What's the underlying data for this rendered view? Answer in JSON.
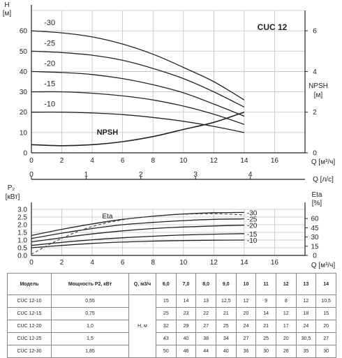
{
  "chart_data": [
    {
      "type": "line",
      "title": "CUC 12",
      "ylabel_left": "H\n[м]",
      "ylabel_right": "NPSH\n[м]",
      "xlabel": "Q [м³/ч]",
      "xlabel_secondary": "Q [л/с]",
      "xlim": [
        0,
        18
      ],
      "ylim": [
        0,
        70
      ],
      "ylim_right": [
        0,
        7
      ],
      "xticks": [
        0,
        2,
        4,
        6,
        8,
        10,
        12,
        14,
        16
      ],
      "xticks_secondary": [
        0,
        1,
        2,
        3,
        4
      ],
      "yticks": [
        0,
        10,
        20,
        30,
        40,
        50,
        60
      ],
      "yticks_right": [
        0,
        2,
        4,
        6
      ],
      "grid": true,
      "series": [
        {
          "name": "-30",
          "x": [
            0,
            2,
            4,
            6,
            8,
            10,
            12,
            14
          ],
          "y": [
            60,
            59,
            57,
            53.5,
            48.5,
            42,
            35,
            26
          ]
        },
        {
          "name": "-25",
          "x": [
            0,
            2,
            4,
            6,
            8,
            10,
            12,
            14
          ],
          "y": [
            50,
            49.3,
            48,
            45.5,
            41.5,
            36.5,
            30,
            22.5
          ]
        },
        {
          "name": "-20",
          "x": [
            0,
            2,
            4,
            6,
            8,
            10,
            12,
            14
          ],
          "y": [
            40,
            39.5,
            38.5,
            36.5,
            33.5,
            29.5,
            24,
            18
          ]
        },
        {
          "name": "-15",
          "x": [
            0,
            2,
            4,
            6,
            8,
            10,
            12,
            14
          ],
          "y": [
            30,
            30,
            29.3,
            28,
            26,
            23,
            19,
            14
          ]
        },
        {
          "name": "-10",
          "x": [
            0,
            2,
            4,
            6,
            8,
            10,
            12,
            14
          ],
          "y": [
            20,
            20,
            19.6,
            18.8,
            17.4,
            15.5,
            13,
            10
          ]
        },
        {
          "name": "NPSH",
          "axis": "right",
          "x": [
            0,
            2,
            4,
            6,
            8,
            10,
            12,
            14
          ],
          "y": [
            0.4,
            0.35,
            0.4,
            0.55,
            0.8,
            1.15,
            1.5,
            2.0
          ]
        }
      ]
    },
    {
      "type": "line",
      "ylabel_left": "P₂\n[кВт]",
      "ylabel_right": "Eta\n[%]",
      "xlabel": "Q [м³/ч]",
      "xlim": [
        0,
        18
      ],
      "ylim": [
        0,
        3.0
      ],
      "ylim_right": [
        0,
        75
      ],
      "xticks": [
        0,
        2,
        4,
        6,
        8,
        10,
        12,
        14,
        16
      ],
      "yticks": [
        0.0,
        0.5,
        1.0,
        1.5,
        2.0,
        2.5,
        3.0
      ],
      "yticks_right": [
        0,
        15,
        30,
        45,
        60
      ],
      "grid": true,
      "series": [
        {
          "name": "-30",
          "x": [
            0,
            2,
            4,
            6,
            8,
            10,
            12,
            14
          ],
          "y": [
            1.3,
            1.7,
            2.05,
            2.35,
            2.55,
            2.7,
            2.78,
            2.8
          ]
        },
        {
          "name": "-25",
          "x": [
            0,
            2,
            4,
            6,
            8,
            10,
            12,
            14
          ],
          "y": [
            1.1,
            1.45,
            1.75,
            2.0,
            2.15,
            2.27,
            2.35,
            2.38
          ]
        },
        {
          "name": "-20",
          "x": [
            0,
            2,
            4,
            6,
            8,
            10,
            12,
            14
          ],
          "y": [
            0.88,
            1.15,
            1.4,
            1.6,
            1.75,
            1.85,
            1.92,
            1.97
          ]
        },
        {
          "name": "-15",
          "x": [
            0,
            2,
            4,
            6,
            8,
            10,
            12,
            14
          ],
          "y": [
            0.65,
            0.85,
            1.02,
            1.15,
            1.25,
            1.33,
            1.38,
            1.42
          ]
        },
        {
          "name": "-10",
          "x": [
            0,
            2,
            4,
            6,
            8,
            10,
            12,
            14
          ],
          "y": [
            0.5,
            0.65,
            0.78,
            0.87,
            0.93,
            0.97,
            0.99,
            1.0
          ]
        },
        {
          "name": "Eta",
          "axis": "right",
          "style": "dashed",
          "x": [
            0,
            2,
            4,
            6,
            8,
            10,
            12,
            14
          ],
          "y": [
            2,
            28,
            47,
            58,
            64,
            67,
            68,
            66
          ]
        }
      ]
    },
    {
      "type": "table",
      "header": {
        "model": "Модель",
        "power": "Мощность P2, кВт",
        "q_unit": "Q, м3/ч",
        "q_values": [
          "6,0",
          "7,0",
          "8,0",
          "9,0",
          "10",
          "11",
          "12",
          "13",
          "14"
        ]
      },
      "head_unit": "Н, м",
      "rows": [
        {
          "model": "CUC 12-10",
          "power": "0,55",
          "h": [
            "15",
            "14",
            "13",
            "12,5",
            "12",
            "9",
            "8",
            "12",
            "10,5"
          ]
        },
        {
          "model": "CUC 12-15",
          "power": "0,75",
          "h": [
            "25",
            "23",
            "22",
            "21",
            "20",
            "14",
            "12",
            "18",
            "15"
          ]
        },
        {
          "model": "CUC 12-20",
          "power": "1,0",
          "h": [
            "32",
            "29",
            "27",
            "25",
            "24",
            "21",
            "17",
            "24",
            "20"
          ]
        },
        {
          "model": "CUC 12-25",
          "power": "1,5",
          "h": [
            "43",
            "40",
            "38",
            "34",
            "27",
            "25",
            "20",
            "30,5",
            "27"
          ]
        },
        {
          "model": "CUC 12-30",
          "power": "1,85",
          "h": [
            "50",
            "46",
            "44",
            "40",
            "36",
            "30",
            "26",
            "35",
            "30"
          ]
        }
      ]
    }
  ]
}
